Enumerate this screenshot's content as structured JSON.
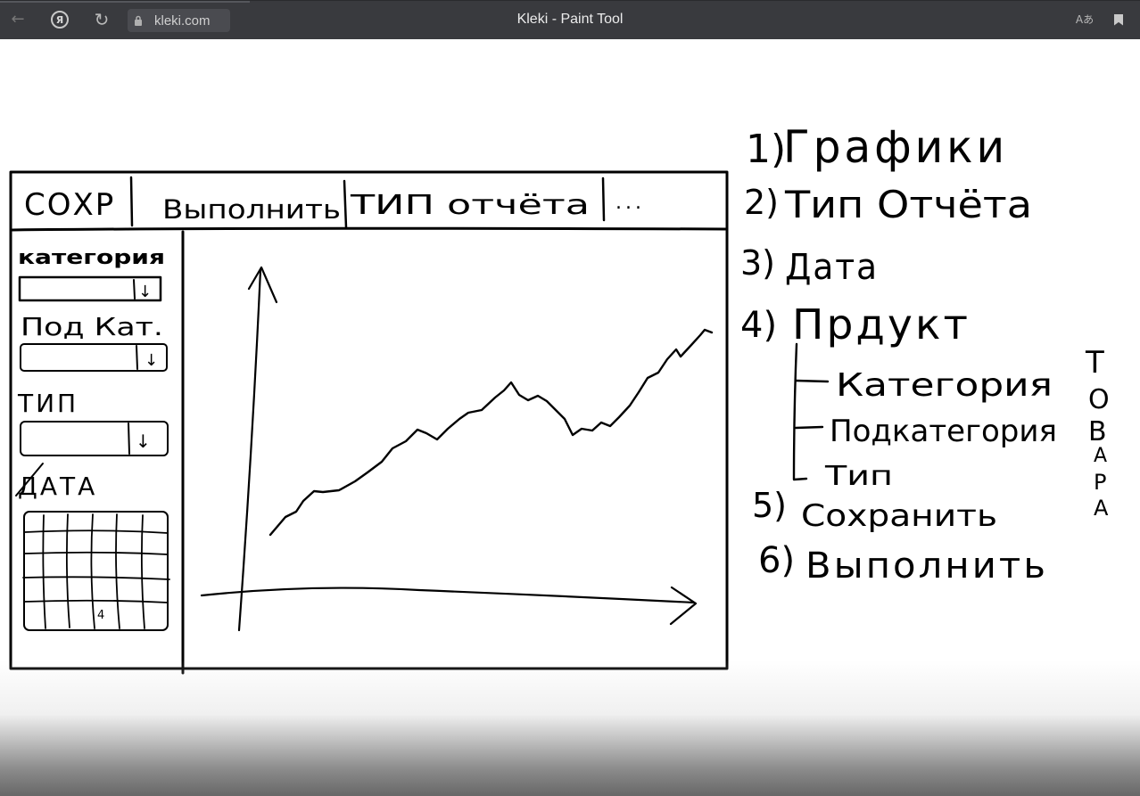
{
  "browser": {
    "url": "kleki.com",
    "title": "Kleki - Paint Tool",
    "icons": [
      "back-arrow-icon",
      "yandex-icon",
      "reload-icon",
      "lock-icon",
      "translate-icon",
      "bookmark-icon"
    ],
    "translate_glyph": "Aあ"
  },
  "mockup": {
    "toolbar": [
      "СОХР",
      "Выполнить",
      "ТИП отчёта",
      "..."
    ],
    "sidebar": {
      "category_label": "категория",
      "category_arrow": "↓",
      "subcategory_label": "Под Кат.",
      "subcategory_arrow": "↓",
      "type_label": "ТИП",
      "type_arrow": "↓",
      "date_label": "ДАТА",
      "calendar_mark": "4"
    }
  },
  "notes": {
    "items": [
      {
        "num": "1)",
        "text": "Графики"
      },
      {
        "num": "2)",
        "text": "Тип Отчёта"
      },
      {
        "num": "3)",
        "text": "Дата"
      },
      {
        "num": "4)",
        "text": "Прдукт"
      },
      {
        "num": "5)",
        "text": "Сохранить"
      },
      {
        "num": "6)",
        "text": "Выполнить"
      }
    ],
    "product_children": [
      "Категория",
      "Подкатегория",
      "Тип"
    ],
    "side_word": [
      "Т",
      "О",
      "В",
      "А",
      "Р",
      "А"
    ]
  }
}
